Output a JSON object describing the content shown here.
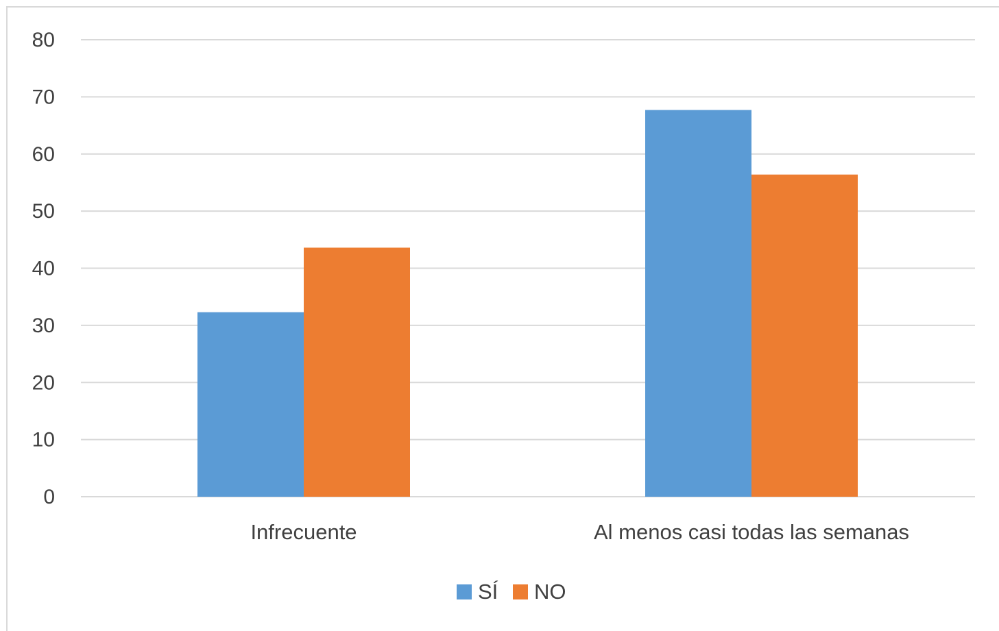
{
  "chart_data": {
    "type": "bar",
    "title": "",
    "xlabel": "",
    "ylabel": "",
    "categories": [
      "Infrecuente",
      "Al menos casi todas las semanas"
    ],
    "series": [
      {
        "name": "SÍ",
        "values": [
          32.3,
          67.7
        ],
        "color": "#5b9bd5"
      },
      {
        "name": "NO",
        "values": [
          43.6,
          56.4
        ],
        "color": "#ed7d31"
      }
    ],
    "ylim": [
      0,
      80
    ],
    "yticks": [
      0,
      10,
      20,
      30,
      40,
      50,
      60,
      70,
      80
    ],
    "grid": true,
    "legend_position": "bottom"
  },
  "colors": {
    "grid": "#d9d9d9",
    "text": "#404040",
    "border": "#d9d9d9"
  }
}
